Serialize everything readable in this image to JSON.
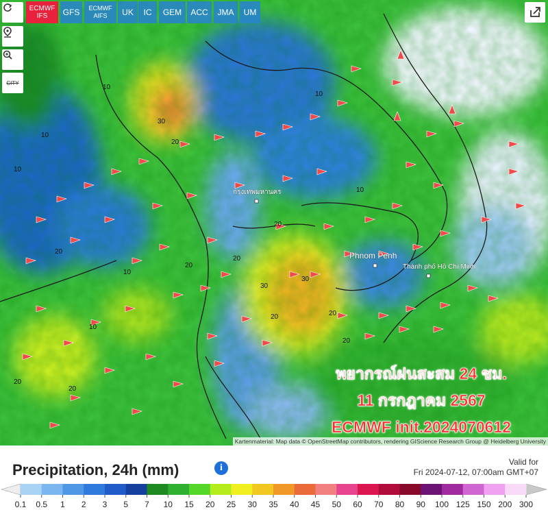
{
  "toolbar": {
    "models": [
      "ECMWF IFS",
      "GFS",
      "ECMWF AIFS",
      "UK",
      "IC",
      "GEM",
      "ACC",
      "JMA",
      "UM"
    ],
    "active_model": "ECMWF IFS",
    "city_button": "CITY"
  },
  "map": {
    "places": [
      "กรุงเทพมหานคร",
      "Phnom Penh",
      "Thành phố Hồ Chí Minh"
    ],
    "contour_labels": [
      10,
      10,
      20,
      20,
      30,
      10,
      20,
      10,
      20,
      30,
      20,
      10,
      20,
      20,
      10,
      30,
      20,
      20,
      10,
      20
    ],
    "overlay": [
      "พยากรณ์ฝนสะสม 24 ชม.",
      "11 กรกฎาคม 2567",
      "ECMWF init.2024070612"
    ],
    "attribution": "Kartenmaterial: Map data © OpenStreetMap contributors, rendering GIScience Research Group @ Heidelberg University"
  },
  "legend": {
    "title": "Precipitation, 24h (mm)",
    "valid_label": "Valid for",
    "valid_time": "Fri 2024-07-12, 07:00am GMT+07",
    "ticks": [
      0.1,
      0.5,
      1,
      2,
      3,
      5,
      7,
      10,
      15,
      20,
      25,
      30,
      35,
      40,
      45,
      50,
      60,
      70,
      80,
      90,
      100,
      125,
      150,
      200,
      300
    ],
    "colors": [
      "#a9d3f5",
      "#7cb6f0",
      "#4e98e6",
      "#2f7adc",
      "#1f5cc8",
      "#15409e",
      "#1d8a22",
      "#30b030",
      "#54d62a",
      "#b4ec1c",
      "#f0f020",
      "#f2c820",
      "#f09828",
      "#ea6a3a",
      "#f28080",
      "#e6448c",
      "#dc1650",
      "#b00c3c",
      "#880a2a",
      "#6c1476",
      "#a02aa0",
      "#d066d2",
      "#f0a2f0",
      "#f8daf8"
    ]
  }
}
